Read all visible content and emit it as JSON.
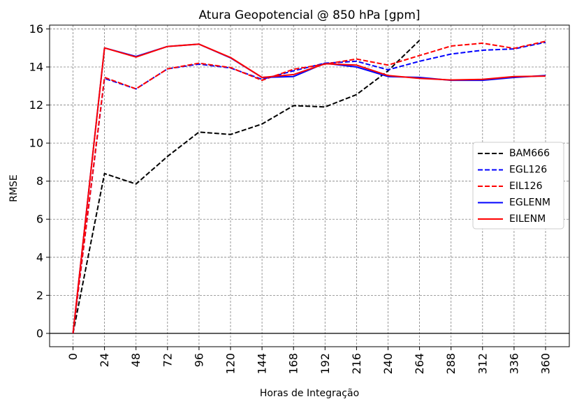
{
  "chart_data": {
    "type": "line",
    "title": "Atura Geopotencial @ 850 hPa [gpm]",
    "xlabel": "Horas de Integração",
    "ylabel": "RMSE",
    "x": [
      0,
      24,
      48,
      72,
      96,
      120,
      144,
      168,
      192,
      216,
      240,
      264,
      288,
      312,
      336,
      360
    ],
    "x_tick_labels": [
      "0",
      "24",
      "48",
      "72",
      "96",
      "120",
      "144",
      "168",
      "192",
      "216",
      "240",
      "264",
      "288",
      "312",
      "336",
      "360"
    ],
    "y_ticks": [
      0,
      2,
      4,
      6,
      8,
      10,
      12,
      14,
      16
    ],
    "y_tick_labels": [
      "0",
      "2",
      "4",
      "6",
      "8",
      "10",
      "12",
      "14",
      "16"
    ],
    "ylim": [
      -0.7,
      16.2
    ],
    "grid": true,
    "legend_position": "center-right",
    "series": [
      {
        "name": "BAM666",
        "color": "#000000",
        "style": "dashed",
        "values": [
          0,
          8.4,
          7.85,
          9.3,
          10.58,
          10.45,
          11.0,
          11.97,
          11.9,
          12.55,
          13.8,
          15.4,
          null,
          null,
          null,
          null
        ]
      },
      {
        "name": "EGL126",
        "color": "#0000ff",
        "style": "dashed",
        "values": [
          0,
          13.4,
          12.85,
          13.9,
          14.15,
          13.95,
          13.35,
          13.8,
          14.2,
          14.3,
          13.85,
          14.3,
          14.68,
          14.88,
          14.95,
          15.3
        ]
      },
      {
        "name": "EIL126",
        "color": "#ff0000",
        "style": "dashed",
        "values": [
          0,
          13.45,
          12.85,
          13.9,
          14.2,
          13.97,
          13.3,
          13.88,
          14.15,
          14.42,
          14.1,
          14.6,
          15.1,
          15.25,
          14.98,
          15.35
        ]
      },
      {
        "name": "EGLENM",
        "color": "#0000ff",
        "style": "solid",
        "values": [
          0,
          15.0,
          14.55,
          15.08,
          15.2,
          14.48,
          13.45,
          13.5,
          14.2,
          14.0,
          13.5,
          13.45,
          13.3,
          13.3,
          13.45,
          13.55
        ]
      },
      {
        "name": "EILENM",
        "color": "#ff0000",
        "style": "solid",
        "values": [
          0,
          15.0,
          14.52,
          15.08,
          15.2,
          14.5,
          13.45,
          13.6,
          14.17,
          14.1,
          13.55,
          13.4,
          13.32,
          13.35,
          13.5,
          13.52
        ]
      }
    ]
  }
}
